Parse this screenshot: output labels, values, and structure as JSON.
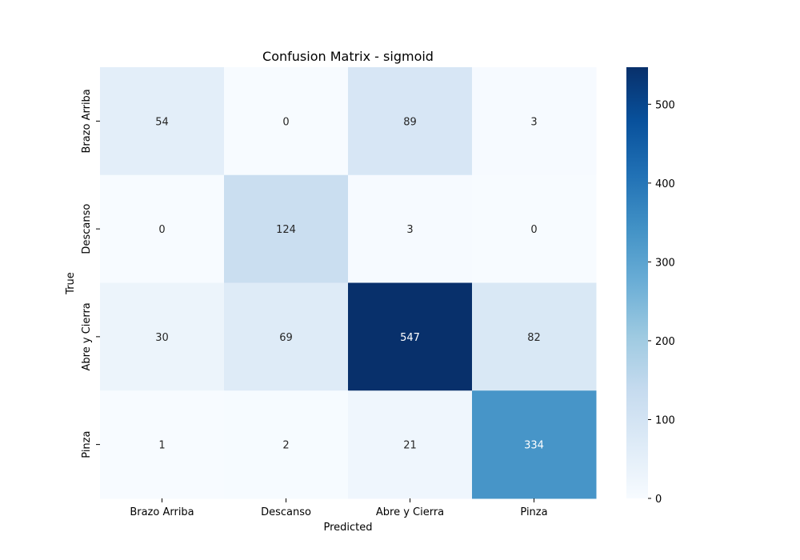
{
  "chart_data": {
    "type": "heatmap",
    "title": "Confusion Matrix - sigmoid",
    "xlabel": "Predicted",
    "ylabel": "True",
    "x_categories": [
      "Brazo Arriba",
      "Descanso",
      "Abre y Cierra",
      "Pinza"
    ],
    "y_categories": [
      "Brazo Arriba",
      "Descanso",
      "Abre y Cierra",
      "Pinza"
    ],
    "matrix": [
      [
        54,
        0,
        89,
        3
      ],
      [
        0,
        124,
        3,
        0
      ],
      [
        30,
        69,
        547,
        82
      ],
      [
        1,
        2,
        21,
        334
      ]
    ],
    "colormap": "Blues",
    "colormap_low": "#f7fbff",
    "colormap_high": "#08306b",
    "colorbar": {
      "min": 0,
      "max": 547,
      "ticks": [
        0,
        100,
        200,
        300,
        400,
        500
      ]
    },
    "annotations": true
  }
}
